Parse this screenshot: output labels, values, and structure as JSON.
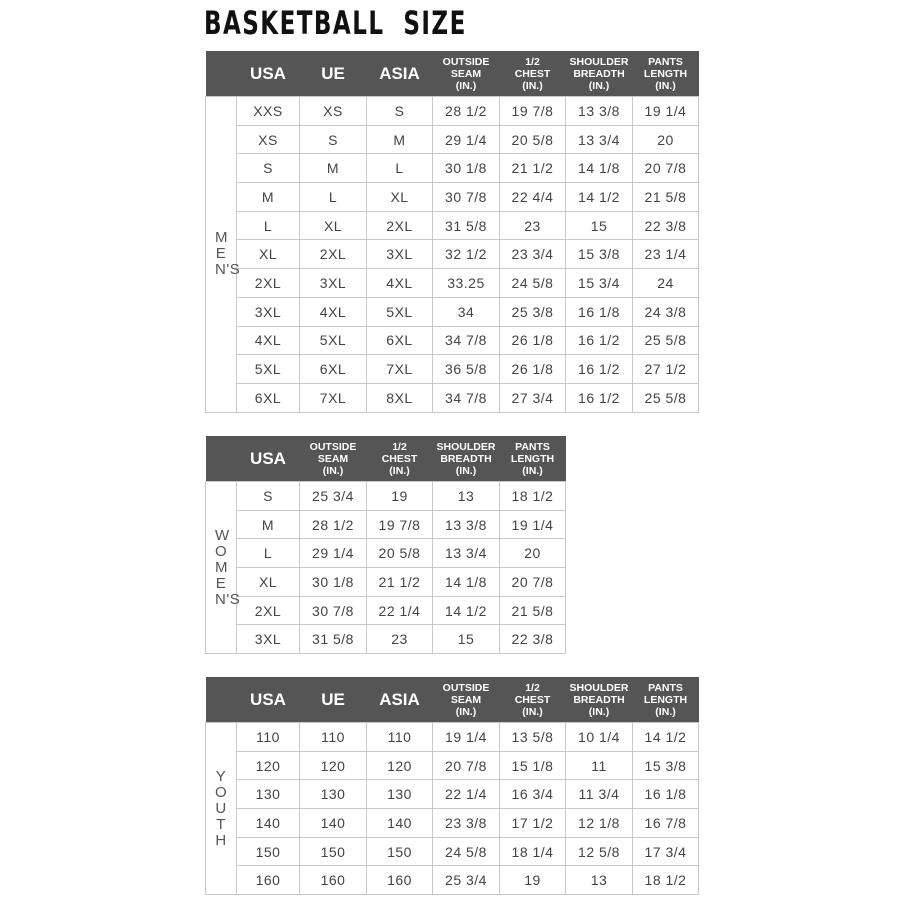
{
  "title": "BASKETBALL  SIZE",
  "colors": {
    "header_bg": "#555555",
    "header_text": "#ffffff",
    "grid": "#c8c8c8",
    "cell_text": "#444444"
  },
  "tables": [
    {
      "id": "mens",
      "side_label": "MEN'S",
      "headers": [
        [
          "USA"
        ],
        [
          "UE"
        ],
        [
          "ASIA"
        ],
        [
          "OUTSIDE",
          "SEAM",
          "(IN.)"
        ],
        [
          "1/2",
          "CHEST",
          "(IN.)"
        ],
        [
          "SHOULDER",
          "BREADTH",
          "(IN.)"
        ],
        [
          "PANTS",
          "LENGTH",
          "(IN.)"
        ]
      ],
      "rows": [
        [
          "XXS",
          "XS",
          "S",
          "28 1/2",
          "19 7/8",
          "13 3/8",
          "19 1/4"
        ],
        [
          "XS",
          "S",
          "M",
          "29 1/4",
          "20 5/8",
          "13 3/4",
          "20"
        ],
        [
          "S",
          "M",
          "L",
          "30 1/8",
          "21 1/2",
          "14 1/8",
          "20 7/8"
        ],
        [
          "M",
          "L",
          "XL",
          "30 7/8",
          "22 4/4",
          "14 1/2",
          "21 5/8"
        ],
        [
          "L",
          "XL",
          "2XL",
          "31 5/8",
          "23",
          "15",
          "22 3/8"
        ],
        [
          "XL",
          "2XL",
          "3XL",
          "32 1/2",
          "23 3/4",
          "15 3/8",
          "23 1/4"
        ],
        [
          "2XL",
          "3XL",
          "4XL",
          "33.25",
          "24 5/8",
          "15 3/4",
          "24"
        ],
        [
          "3XL",
          "4XL",
          "5XL",
          "34",
          "25 3/8",
          "16 1/8",
          "24 3/8"
        ],
        [
          "4XL",
          "5XL",
          "6XL",
          "34 7/8",
          "26 1/8",
          "16 1/2",
          "25 5/8"
        ],
        [
          "5XL",
          "6XL",
          "7XL",
          "36 5/8",
          "26 1/8",
          "16 1/2",
          "27 1/2"
        ],
        [
          "6XL",
          "7XL",
          "8XL",
          "34 7/8",
          "27 3/4",
          "16 1/2",
          "25 5/8"
        ]
      ]
    },
    {
      "id": "womens",
      "side_label": "WOMEN'S",
      "headers": [
        [
          "USA"
        ],
        [
          "OUTSIDE",
          "SEAM",
          "(IN.)"
        ],
        [
          "1/2",
          "CHEST",
          "(IN.)"
        ],
        [
          "SHOULDER",
          "BREADTH",
          "(IN.)"
        ],
        [
          "PANTS",
          "LENGTH",
          "(IN.)"
        ]
      ],
      "rows": [
        [
          "S",
          "25 3/4",
          "19",
          "13",
          "18 1/2"
        ],
        [
          "M",
          "28 1/2",
          "19 7/8",
          "13 3/8",
          "19 1/4"
        ],
        [
          "L",
          "29 1/4",
          "20 5/8",
          "13 3/4",
          "20"
        ],
        [
          "XL",
          "30 1/8",
          "21 1/2",
          "14 1/8",
          "20 7/8"
        ],
        [
          "2XL",
          "30 7/8",
          "22 1/4",
          "14 1/2",
          "21 5/8"
        ],
        [
          "3XL",
          "31 5/8",
          "23",
          "15",
          "22 3/8"
        ]
      ]
    },
    {
      "id": "youth",
      "side_label": "YOUTH",
      "headers": [
        [
          "USA"
        ],
        [
          "UE"
        ],
        [
          "ASIA"
        ],
        [
          "OUTSIDE",
          "SEAM",
          "(IN.)"
        ],
        [
          "1/2",
          "CHEST",
          "(IN.)"
        ],
        [
          "SHOULDER",
          "BREADTH",
          "(IN.)"
        ],
        [
          "PANTS",
          "LENGTH",
          "(IN.)"
        ]
      ],
      "rows": [
        [
          "110",
          "110",
          "110",
          "19 1/4",
          "13 5/8",
          "10 1/4",
          "14 1/2"
        ],
        [
          "120",
          "120",
          "120",
          "20 7/8",
          "15 1/8",
          "11",
          "15 3/8"
        ],
        [
          "130",
          "130",
          "130",
          "22 1/4",
          "16 3/4",
          "11 3/4",
          "16 1/8"
        ],
        [
          "140",
          "140",
          "140",
          "23 3/8",
          "17 1/2",
          "12 1/8",
          "16 7/8"
        ],
        [
          "150",
          "150",
          "150",
          "24 5/8",
          "18 1/4",
          "12 5/8",
          "17 3/4"
        ],
        [
          "160",
          "160",
          "160",
          "25 3/4",
          "19",
          "13",
          "18 1/2"
        ]
      ]
    }
  ]
}
